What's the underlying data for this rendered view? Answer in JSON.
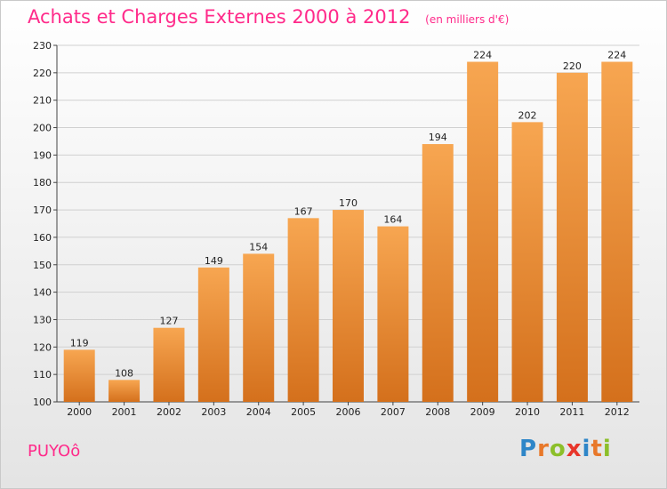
{
  "header": {
    "title": "Achats et Charges Externes 2000 à 2012",
    "unit": "(en milliers d'€)"
  },
  "location": "PUYOô",
  "logo": {
    "text": "Proxiti",
    "letters": [
      {
        "ch": "P",
        "color": "#2e86c8"
      },
      {
        "ch": "r",
        "color": "#e8782a"
      },
      {
        "ch": "o",
        "color": "#8cbf2a"
      },
      {
        "ch": "x",
        "color": "#e8352a"
      },
      {
        "ch": "i",
        "color": "#2e86c8"
      },
      {
        "ch": "t",
        "color": "#e8782a"
      },
      {
        "ch": "i",
        "color": "#8cbf2a"
      }
    ]
  },
  "colors": {
    "title": "#ff2a8a",
    "bar_top": "#f7a651",
    "bar_bottom": "#d4701c",
    "grid": "#d0d0d0"
  },
  "chart_data": {
    "type": "bar",
    "title": "Achats et Charges Externes 2000 à 2012",
    "unit": "(en milliers d'€)",
    "categories": [
      "2000",
      "2001",
      "2002",
      "2003",
      "2004",
      "2005",
      "2006",
      "2007",
      "2008",
      "2009",
      "2010",
      "2011",
      "2012"
    ],
    "values": [
      119,
      108,
      127,
      149,
      154,
      167,
      170,
      164,
      194,
      224,
      202,
      220,
      224
    ],
    "ylim": [
      100,
      230
    ],
    "yticks": [
      100,
      110,
      120,
      130,
      140,
      150,
      160,
      170,
      180,
      190,
      200,
      210,
      220,
      230
    ],
    "grid": true,
    "data_labels": true
  }
}
